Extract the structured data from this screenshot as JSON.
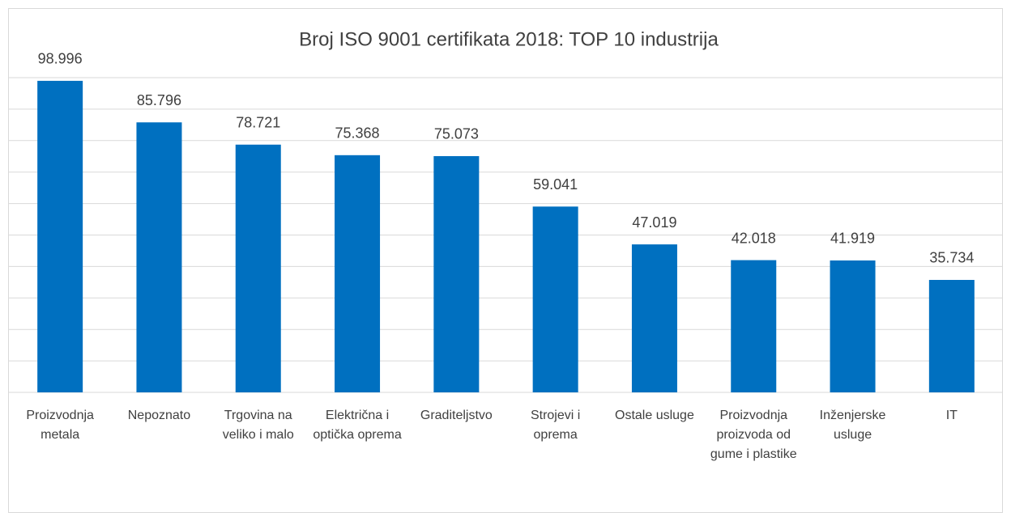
{
  "chart_data": {
    "type": "bar",
    "title": "Broj ISO 9001 certifikata 2018: TOP 10 industrija",
    "categories": [
      "Proizvodnja metala",
      "Nepoznato",
      "Trgovina na veliko i malo",
      "Električna i optička oprema",
      "Graditeljstvo",
      "Strojevi i oprema",
      "Ostale usluge",
      "Proizvodnja proizvoda od gume i plastike",
      "Inženjerske usluge",
      "IT"
    ],
    "values": [
      98996,
      85796,
      78721,
      75368,
      75073,
      59041,
      47019,
      42018,
      41919,
      35734
    ],
    "value_labels": [
      "98.996",
      "85.796",
      "78.721",
      "75.368",
      "75.073",
      "59.041",
      "47.019",
      "42.018",
      "41.919",
      "35.734"
    ],
    "color": "#0070c0",
    "ylim": [
      0,
      100000
    ],
    "yticks": [
      0,
      10000,
      20000,
      30000,
      40000,
      50000,
      60000,
      70000,
      80000,
      90000,
      100000
    ],
    "grid": true
  }
}
